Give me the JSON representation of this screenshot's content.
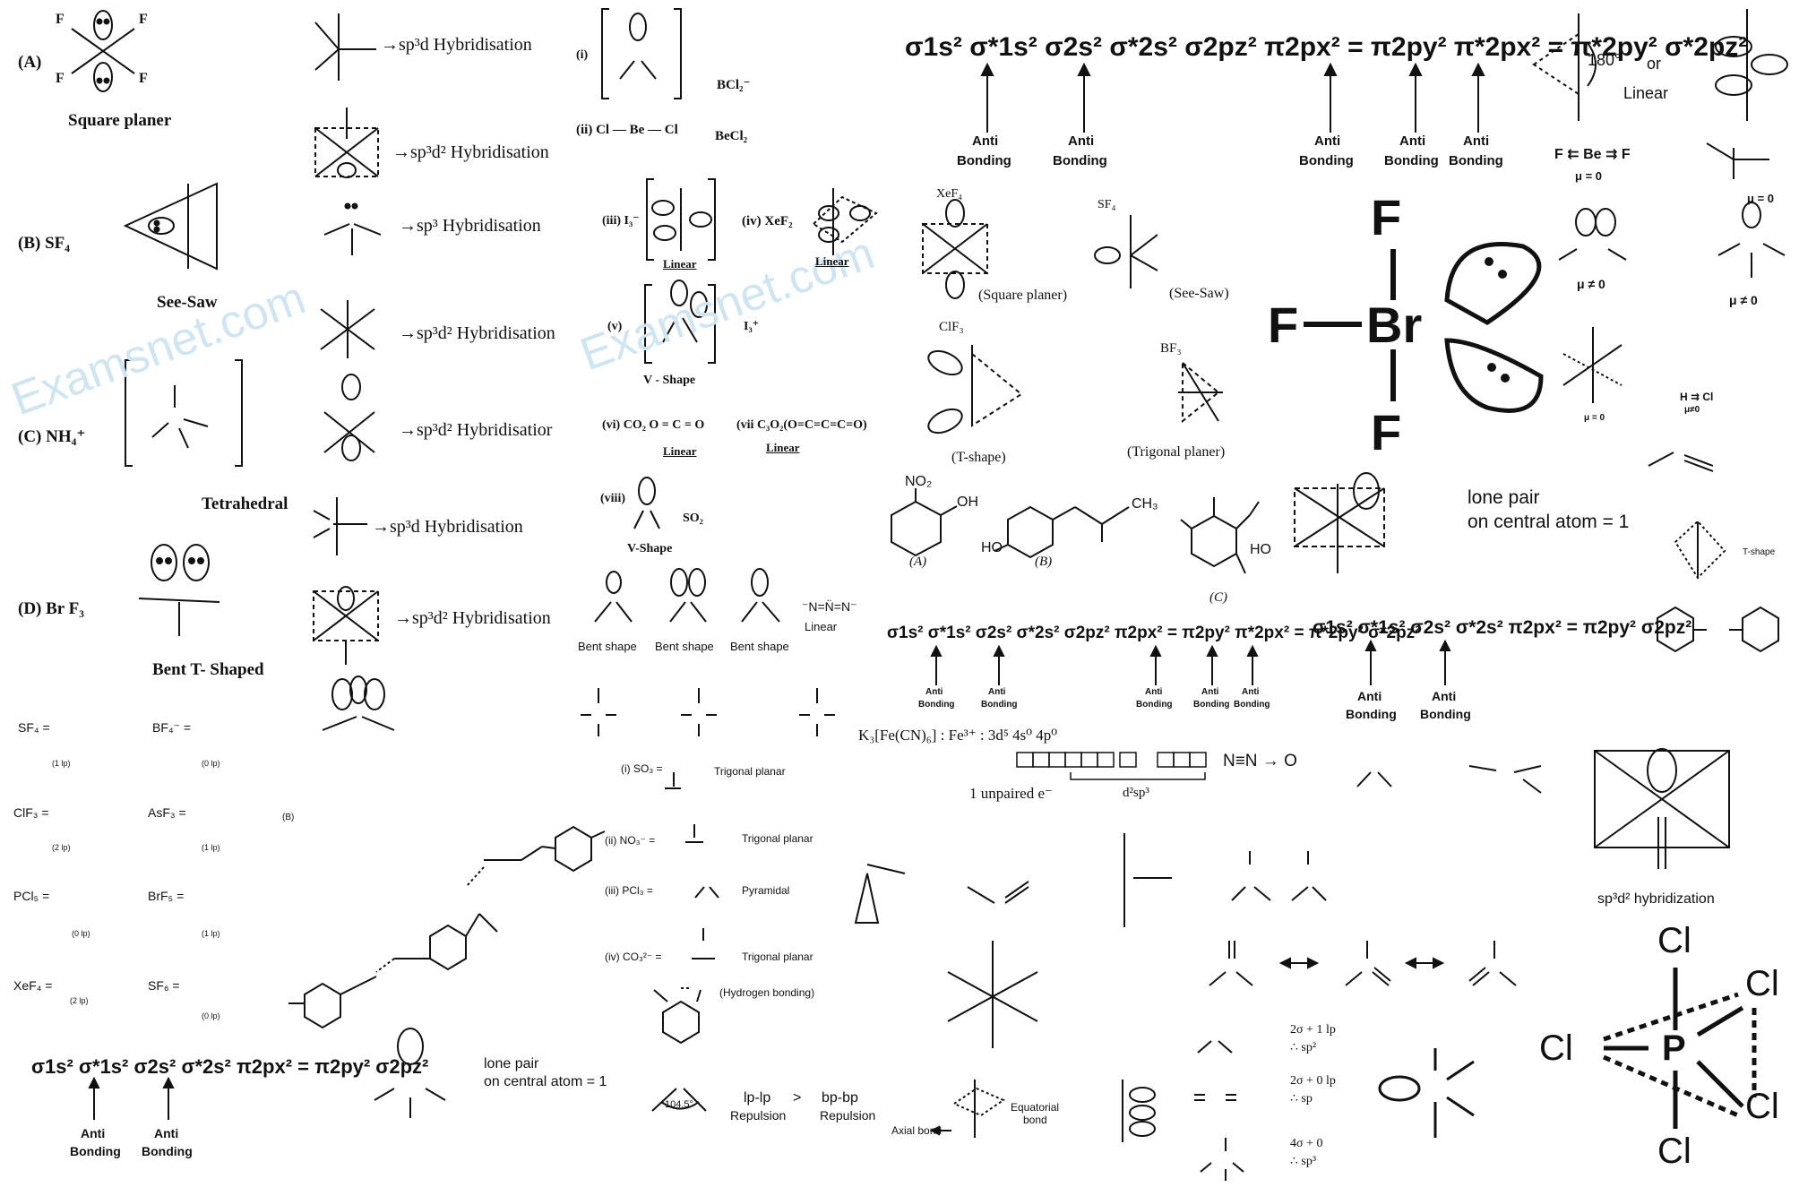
{
  "watermark": "Examsnet.com",
  "col1": {
    "a_label": "(A)",
    "a_shape": "Square planer",
    "b_label": "(B) SF₄",
    "b_shape": "See-Saw",
    "c_label": "(C) NH₄⁺",
    "c_shape": "Tetrahedral",
    "d_label": "(D) Br F₃",
    "d_shape": "Bent T- Shaped"
  },
  "hybrid": {
    "h1": "→sp³d Hybridisation",
    "h2": "→sp³d² Hybridisation",
    "h3": "→sp³ Hybridisation",
    "h4": "→sp³d² Hybridisation",
    "h5": "→sp³d² Hybridisatior",
    "h6": "→sp³d Hybridisation",
    "h7": "→sp³d² Hybridisation"
  },
  "ions": {
    "i": "(i)",
    "i_name": "BCl₂⁻",
    "ii": "(ii)  Cl — Be — Cl",
    "ii_name": "BeCl₂",
    "iii": "(iii) I₃⁻",
    "iii_shape": "Linear",
    "iv": "(iv)  XeF₂",
    "iv_shape": "Linear",
    "v": "(v)",
    "v_name": "I₃⁺",
    "v_shape": "V - Shape",
    "vi": "(vi) CO₂   O = C = O",
    "vi_shape": "Linear",
    "vii": "(vii  C₃O₂(O=C=C=C=O)",
    "vii_shape": "Linear",
    "viii": "(viii)",
    "viii_name": "SO₂",
    "viii_shape": "V-Shape"
  },
  "mo": {
    "top": "σ1s² σ*1s² σ2s² σ*2s² σ2pz² π2px² = π2py² π*2px² = π*2py² σ*2pz²",
    "anti": "Anti",
    "bonding": "Bonding",
    "mid": "σ1s² σ*1s² σ2s² σ*2s² σ2pz² π2px² = π2py² π*2px² = π*2py² σ*2pz²",
    "right": "σ1s² σ*1s² σ2s² σ*2s² π2px² = π2py² σ2pz²",
    "bottom": "σ1s² σ*1s² σ2s² σ*2s² π2px² = π2py² σ2pz²"
  },
  "shapes": {
    "xef4": "XeF₄",
    "square_planer": "(Square planer)",
    "sf4": "SF₄",
    "see_saw": "(See-Saw)",
    "clf3": "ClF₃",
    "t_shape": "(T-shape)",
    "bf3": "BF₃",
    "trigonal_planer": "(Trigonal planer)",
    "angle": "180°",
    "or": "or",
    "linear": "Linear"
  },
  "dipoles": {
    "bef2": "F ⇇ Be ⇉ F",
    "mu0": "μ = 0",
    "mune0": "μ ≠ 0",
    "hcl": "H ⇉ Cl",
    "hcl_mu": "μ≠0"
  },
  "lone": {
    "text1": "lone pair",
    "text2": "on central atom = 1",
    "tshape": "T-shape"
  },
  "bent": {
    "b1": "Bent shape",
    "b2": "Bent shape",
    "b3": "Bent shape",
    "linear": "Linear",
    "azide": "⁻N=N̈=N⁻"
  },
  "small": {
    "sf4": "SF₄ =",
    "sf4_lp": "(1 lp)",
    "bf4": "BF₄⁻ =",
    "bf4_lp": "(0 lp)",
    "clf3": "ClF₃ =",
    "clf3_lp": "(2 lp)",
    "asf3": "AsF₃ =",
    "asf3_lp": "(1 lp)",
    "b": "(B)",
    "pcl5": "PCl₅ =",
    "pcl5_lp": "(0 lp)",
    "brf5": "BrF₅ =",
    "brf5_lp": "(1 lp)",
    "xef4": "XeF₄ =",
    "xef4_lp": "(2 lp)",
    "sf6": "SF₆ =",
    "sf6_lp": "(0 lp)"
  },
  "planar": {
    "i": "(i) SO₃ =",
    "i_shape": "Trigonal planar",
    "ii": "(ii)   NO₃⁻ =",
    "ii_shape": "Trigonal planar",
    "iii": "(iii)  PCl₃ =",
    "iii_shape": "Pyramidal",
    "iv": "(iv)  CO₃²⁻ =",
    "iv_shape": "Trigonal planar",
    "hbond": "(Hydrogen bonding)"
  },
  "water": {
    "angle": "104.5°",
    "lplp": "lp-lp",
    "gt": ">",
    "bpbp": "bp-bp",
    "rep1": "Repulsion",
    "rep2": "Repulsion"
  },
  "organic": {
    "a": "(A)",
    "b": "(B)",
    "c": "(C)",
    "no2": "NO₂",
    "oh": "OH",
    "ho": "HO",
    "ch3": "CH₃",
    "h": "H",
    "n": "N",
    "o": "O"
  },
  "fe": {
    "formula": "K₃[Fe(CN)₆] : Fe³⁺   :   3d⁵        4s⁰       4p⁰",
    "unpaired": "1 unpaired e⁻",
    "hyb": "d²sp³",
    "n2o": "N≡N → O"
  },
  "hybrid_count": {
    "a": "2σ + 1 lp",
    "a2": "∴  sp²",
    "b": "2σ + 0 lp",
    "b2": "∴  sp",
    "c": "4σ + 0",
    "c2": "∴  sp³"
  },
  "xeof4": {
    "label": "sp³d² hybridization"
  },
  "tbp": {
    "axial": "Axial bond",
    "eq1": "Equatorial",
    "eq2": "bond"
  },
  "big": {
    "f": "F",
    "br": "Br",
    "cl": "Cl",
    "p": "P"
  }
}
